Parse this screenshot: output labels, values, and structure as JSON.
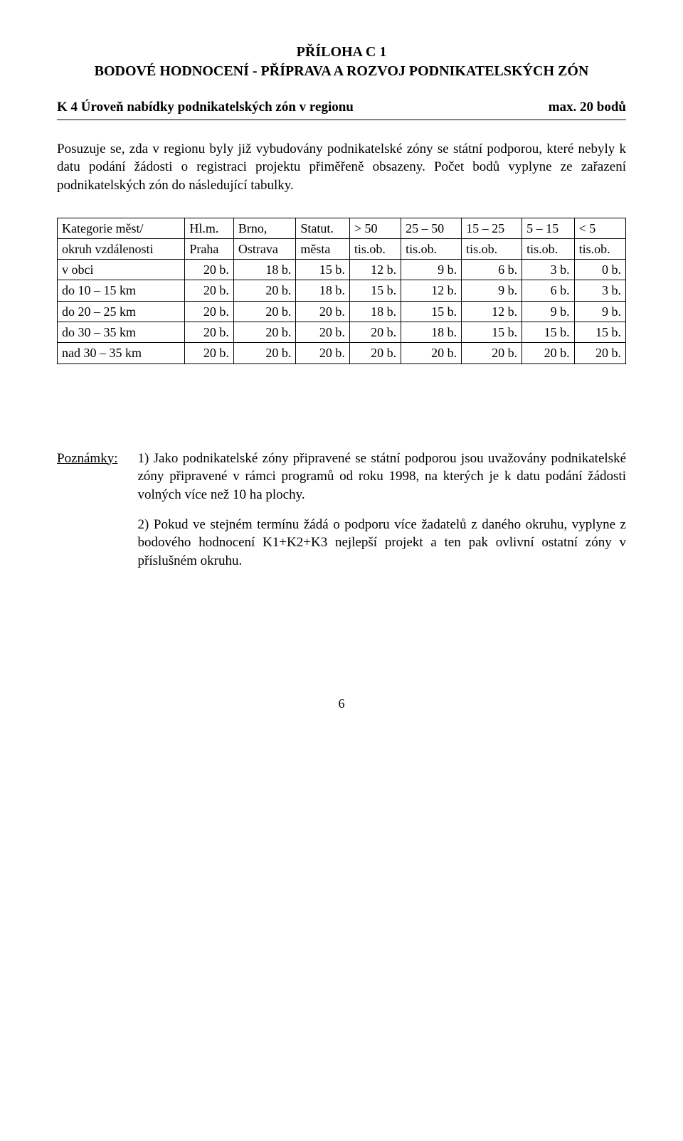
{
  "header": {
    "line1": "PŘÍLOHA C 1",
    "line2": "BODOVÉ HODNOCENÍ - PŘÍPRAVA A ROZVOJ PODNIKATELSKÝCH ZÓN"
  },
  "section": {
    "title": "K 4 Úroveň nabídky podnikatelských zón v regionu",
    "max": "max. 20 bodů"
  },
  "paragraph": "Posuzuje se, zda v regionu byly již vybudovány podnikatelské zóny se státní podporou, které nebyly k datu podání žádosti o registraci projektu přiměřeně obsazeny. Počet bodů vyplyne ze zařazení podnikatelských zón do následující tabulky.",
  "table": {
    "header_top": [
      "Kategorie měst/",
      "Hl.m.",
      "Brno,",
      "Statut.",
      "> 50",
      "25 – 50",
      "15 – 25",
      "5 – 15",
      "< 5"
    ],
    "header_bottom": [
      "okruh vzdálenosti",
      "Praha",
      "Ostrava",
      "města",
      "tis.ob.",
      "tis.ob.",
      "tis.ob.",
      "tis.ob.",
      "tis.ob."
    ],
    "rows": [
      [
        "v obci",
        "20 b.",
        "18 b.",
        "15 b.",
        "12 b.",
        "9 b.",
        "6 b.",
        "3 b.",
        "0 b."
      ],
      [
        "do 10 – 15 km",
        "20 b.",
        "20 b.",
        "18 b.",
        "15 b.",
        "12 b.",
        "9 b.",
        "6 b.",
        "3 b."
      ],
      [
        "do 20 – 25 km",
        "20 b.",
        "20 b.",
        "20 b.",
        "18 b.",
        "15 b.",
        "12 b.",
        "9 b.",
        "9 b."
      ],
      [
        "do 30 – 35 km",
        "20 b.",
        "20 b.",
        "20 b.",
        "20 b.",
        "18 b.",
        "15 b.",
        "15 b.",
        "15 b."
      ],
      [
        "nad 30 – 35 km",
        "20 b.",
        "20 b.",
        "20 b.",
        "20 b.",
        "20 b.",
        "20 b.",
        "20 b.",
        "20 b."
      ]
    ]
  },
  "notes": {
    "label": "Poznámky:",
    "items": [
      "1) Jako podnikatelské zóny připravené se státní podporou jsou uvažovány podnikatelské zóny připravené v rámci programů od roku 1998, na kterých je k datu podání žádosti volných více než 10 ha plochy.",
      "2) Pokud ve stejném termínu žádá o podporu více žadatelů z daného okruhu, vyplyne z bodového hodnocení K1+K2+K3 nejlepší projekt a ten pak ovlivní ostatní zóny v příslušném okruhu."
    ]
  },
  "page_number": "6"
}
